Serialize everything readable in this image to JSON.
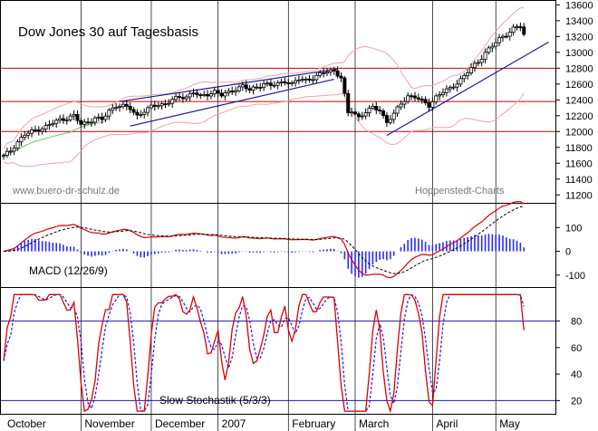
{
  "chart_data": {
    "type": "line",
    "title": "Dow Jones 30 auf Tagesbasis",
    "watermark_left": "www.buero-dr-schulz.de",
    "watermark_right": "Hoppenstedt-Charts",
    "months": [
      {
        "label": "October",
        "day": 0
      },
      {
        "label": "November",
        "day": 22
      },
      {
        "label": "December",
        "day": 42
      },
      {
        "label": "2007",
        "day": 61
      },
      {
        "label": "February",
        "day": 81
      },
      {
        "label": "March",
        "day": 100
      },
      {
        "label": "April",
        "day": 122
      },
      {
        "label": "May",
        "day": 140
      }
    ],
    "x_range": [
      0,
      150
    ],
    "price": {
      "ylim": [
        11100,
        13650
      ],
      "ticks": [
        11200,
        11400,
        11600,
        11800,
        12000,
        12200,
        12400,
        12600,
        12800,
        13000,
        13200,
        13400,
        13600
      ],
      "horizontal_levels": [
        12800,
        12380,
        12000
      ],
      "trendlines": [
        {
          "from": [
            33,
            12380
          ],
          "to": [
            95,
            12790
          ],
          "color": "#1a1aa8"
        },
        {
          "from": [
            36,
            12070
          ],
          "to": [
            94,
            12660
          ],
          "color": "#1a1aa8"
        },
        {
          "from": [
            109,
            11950
          ],
          "to": [
            155,
            13130
          ],
          "color": "#1a1aa8"
        }
      ],
      "ohlc_anchors_close": [
        [
          0,
          11690
        ],
        [
          2,
          11760
        ],
        [
          4,
          11870
        ],
        [
          6,
          11960
        ],
        [
          8,
          12000
        ],
        [
          10,
          12030
        ],
        [
          12,
          12060
        ],
        [
          14,
          12110
        ],
        [
          16,
          12150
        ],
        [
          18,
          12170
        ],
        [
          20,
          12200
        ],
        [
          22,
          12090
        ],
        [
          24,
          12120
        ],
        [
          26,
          12170
        ],
        [
          28,
          12150
        ],
        [
          30,
          12260
        ],
        [
          32,
          12330
        ],
        [
          34,
          12320
        ],
        [
          36,
          12290
        ],
        [
          38,
          12200
        ],
        [
          40,
          12260
        ],
        [
          42,
          12310
        ],
        [
          44,
          12340
        ],
        [
          46,
          12350
        ],
        [
          48,
          12400
        ],
        [
          50,
          12430
        ],
        [
          52,
          12440
        ],
        [
          54,
          12500
        ],
        [
          56,
          12440
        ],
        [
          58,
          12470
        ],
        [
          60,
          12510
        ],
        [
          62,
          12460
        ],
        [
          64,
          12490
        ],
        [
          66,
          12540
        ],
        [
          68,
          12580
        ],
        [
          70,
          12520
        ],
        [
          72,
          12560
        ],
        [
          74,
          12610
        ],
        [
          76,
          12580
        ],
        [
          78,
          12600
        ],
        [
          80,
          12640
        ],
        [
          82,
          12600
        ],
        [
          84,
          12660
        ],
        [
          86,
          12650
        ],
        [
          88,
          12680
        ],
        [
          90,
          12720
        ],
        [
          92,
          12760
        ],
        [
          94,
          12770
        ],
        [
          96,
          12680
        ],
        [
          98,
          12230
        ],
        [
          99,
          12260
        ],
        [
          101,
          12180
        ],
        [
          103,
          12250
        ],
        [
          105,
          12300
        ],
        [
          107,
          12270
        ],
        [
          109,
          12120
        ],
        [
          111,
          12220
        ],
        [
          113,
          12350
        ],
        [
          115,
          12450
        ],
        [
          117,
          12440
        ],
        [
          119,
          12380
        ],
        [
          121,
          12330
        ],
        [
          123,
          12440
        ],
        [
          125,
          12500
        ],
        [
          127,
          12540
        ],
        [
          129,
          12620
        ],
        [
          131,
          12700
        ],
        [
          133,
          12800
        ],
        [
          135,
          12880
        ],
        [
          137,
          13000
        ],
        [
          139,
          13080
        ],
        [
          141,
          13170
        ],
        [
          143,
          13230
        ],
        [
          145,
          13300
        ],
        [
          147,
          13330
        ],
        [
          148,
          13220
        ]
      ]
    },
    "macd": {
      "label": "MACD (12/26/9)",
      "ylim": [
        -150,
        200
      ],
      "ticks": [
        -100,
        0,
        100
      ]
    },
    "stochastic": {
      "label": "Slow Stochastik (5/3/3)",
      "ylim": [
        10,
        105
      ],
      "ticks": [
        20,
        40,
        60,
        80
      ],
      "levels": [
        80,
        20
      ]
    }
  }
}
